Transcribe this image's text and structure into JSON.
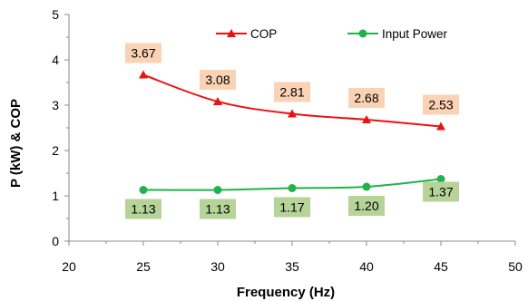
{
  "chart_data": {
    "type": "line",
    "title": "",
    "xlabel": "Frequency (Hz)",
    "ylabel": "P (kW)  & COP",
    "xlim": [
      20,
      50
    ],
    "ylim": [
      0,
      5
    ],
    "x_ticks": [
      20,
      25,
      30,
      35,
      40,
      45,
      50
    ],
    "y_ticks": [
      0,
      1,
      2,
      3,
      4,
      5
    ],
    "grid": false,
    "legend_position": "top-right",
    "x": [
      25,
      30,
      35,
      40,
      45
    ],
    "series": [
      {
        "name": "COP",
        "values": [
          3.67,
          3.08,
          2.81,
          2.68,
          2.53
        ],
        "labels": [
          "3.67",
          "3.08",
          "2.81",
          "2.68",
          "2.53"
        ],
        "color": "#ee1111",
        "marker": "triangle",
        "label_bg": "#fad2b4"
      },
      {
        "name": "Input Power",
        "values": [
          1.13,
          1.13,
          1.17,
          1.2,
          1.37
        ],
        "labels": [
          "1.13",
          "1.13",
          "1.17",
          "1.20",
          "1.37"
        ],
        "color": "#21b24b",
        "marker": "circle",
        "label_bg": "#b6d398"
      }
    ]
  }
}
